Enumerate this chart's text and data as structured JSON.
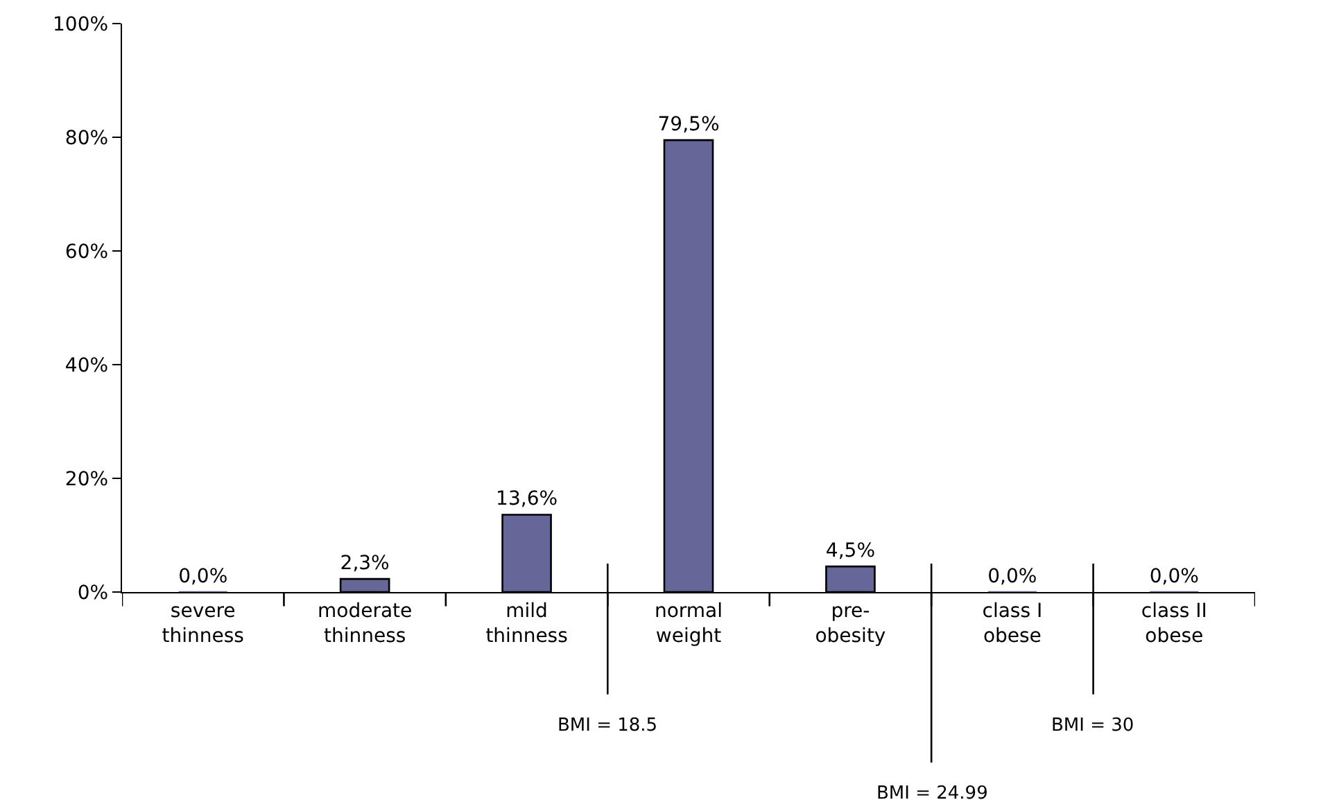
{
  "chart_data": {
    "type": "bar",
    "categories": [
      "severe thinness",
      "moderate thinness",
      "mild thinness",
      "normal weight",
      "pre-obesity",
      "class I obese",
      "class II obese"
    ],
    "values": [
      0,
      2.3,
      13.6,
      79.5,
      4.5,
      0,
      0
    ],
    "value_labels": [
      "0,0%",
      "2,3%",
      "13,6%",
      "79,5%",
      "4,5%",
      "0,0%",
      "0,0%"
    ],
    "color": "#666699",
    "ylim": [
      0,
      100
    ],
    "yticks": [
      {
        "value": 0,
        "label": "0%"
      },
      {
        "value": 20,
        "label": "20%"
      },
      {
        "value": 40,
        "label": "40%"
      },
      {
        "value": 60,
        "label": "60%"
      },
      {
        "value": 80,
        "label": "80%"
      },
      {
        "value": 100,
        "label": "100%"
      }
    ],
    "grid": false,
    "annotations": [
      "BMI = 18.5",
      "BMI = 24.99",
      "BMI = 30"
    ]
  }
}
